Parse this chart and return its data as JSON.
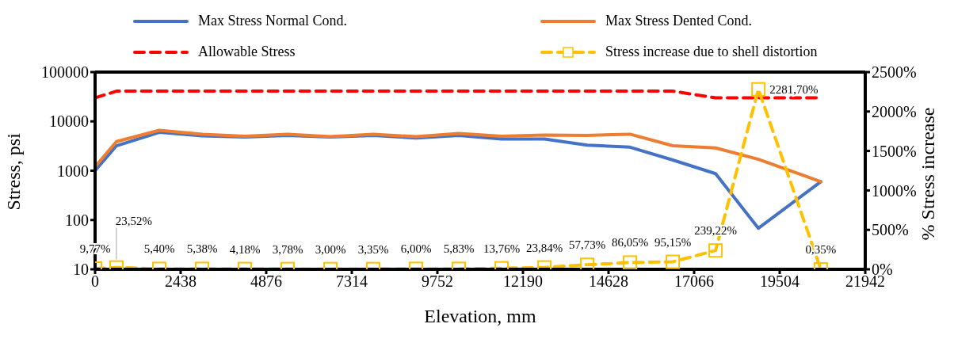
{
  "chart_data": {
    "type": "line",
    "xlabel": "Elevation, mm",
    "ylabel": "Stress, psi",
    "y2label": "% Stress increase",
    "x": [
      0,
      609,
      1829,
      3048,
      4267,
      5486,
      6706,
      7925,
      9144,
      10363,
      11582,
      12802,
      14021,
      15240,
      16459,
      17678,
      18898,
      20676
    ],
    "series": [
      {
        "name": "Max Stress Normal Cond.",
        "color": "#4472c4",
        "line_style": "solid",
        "marker": "none",
        "values": [
          1000,
          3200,
          6000,
          5100,
          4800,
          5200,
          4800,
          5200,
          4600,
          5200,
          4400,
          4400,
          3300,
          3000,
          1650,
          870,
          68,
          600
        ]
      },
      {
        "name": "Max Stress Dented Cond.",
        "color": "#ed7d31",
        "line_style": "solid",
        "marker": "none",
        "values": [
          1200,
          3900,
          6600,
          5500,
          5000,
          5500,
          4900,
          5500,
          4900,
          5700,
          5000,
          5300,
          5200,
          5500,
          3200,
          2900,
          1700,
          600
        ]
      },
      {
        "name": "Allowable Stress",
        "color": "#ff0000",
        "line_style": "dashed",
        "marker": "none",
        "values": [
          30000,
          41000,
          41000,
          41000,
          41000,
          41000,
          41000,
          41000,
          41000,
          41000,
          41000,
          41000,
          41000,
          41000,
          41000,
          30000,
          30000,
          30000
        ]
      },
      {
        "name": "Stress increase due to shell distortion",
        "color": "#ffc000",
        "line_style": "dashed",
        "marker": "square",
        "axis": "y2",
        "values": [
          9.77,
          23.52,
          5.4,
          5.38,
          4.18,
          3.78,
          3.0,
          3.35,
          6.0,
          5.83,
          13.76,
          23.84,
          57.73,
          86.05,
          95.15,
          239.22,
          2281.7,
          0.35
        ],
        "value_labels": [
          "9,77%",
          "23,52%",
          "5,40%",
          "5,38%",
          "4,18%",
          "3,78%",
          "3,00%",
          "3,35%",
          "6,00%",
          "5,83%",
          "13,76%",
          "23,84%",
          "57,73%",
          "86,05%",
          "95,15%",
          "239,22%",
          "2281,70%",
          "0,35%"
        ]
      }
    ],
    "xlim": [
      0,
      21942
    ],
    "xticks": [
      0,
      2438,
      4876,
      7314,
      9752,
      12190,
      14628,
      17066,
      19504,
      21942
    ],
    "log": "y",
    "ylim": [
      10,
      100000
    ],
    "yticks": [
      10,
      100,
      1000,
      10000,
      100000
    ],
    "y2lim": [
      0,
      2500
    ],
    "y2ticks": [
      {
        "value": 0,
        "label": "0%"
      },
      {
        "value": 500,
        "label": "500%"
      },
      {
        "value": 1000,
        "label": "1000%"
      },
      {
        "value": 1500,
        "label": "1500%"
      },
      {
        "value": 2000,
        "label": "2000%"
      },
      {
        "value": 2500,
        "label": "2500%"
      }
    ],
    "grid": false,
    "legend": "top"
  }
}
